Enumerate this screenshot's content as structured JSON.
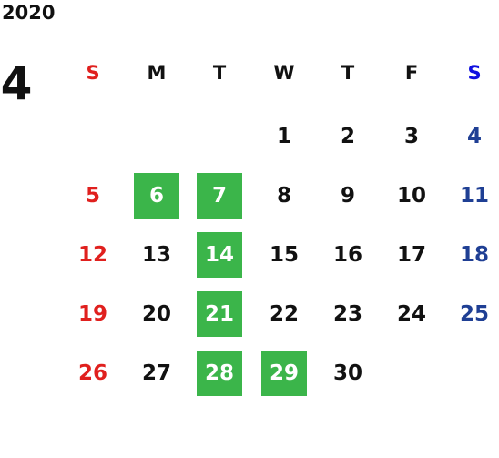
{
  "year": "2020",
  "month": "4",
  "weekdays": [
    "S",
    "M",
    "T",
    "W",
    "T",
    "F",
    "S"
  ],
  "weeks": [
    [
      null,
      null,
      null,
      {
        "day": 1
      },
      {
        "day": 2
      },
      {
        "day": 3
      },
      {
        "day": 4
      }
    ],
    [
      {
        "day": 5
      },
      {
        "day": 6,
        "highlight": true
      },
      {
        "day": 7,
        "highlight": true
      },
      {
        "day": 8
      },
      {
        "day": 9
      },
      {
        "day": 10
      },
      {
        "day": 11
      }
    ],
    [
      {
        "day": 12
      },
      {
        "day": 13
      },
      {
        "day": 14,
        "highlight": true
      },
      {
        "day": 15
      },
      {
        "day": 16
      },
      {
        "day": 17
      },
      {
        "day": 18
      }
    ],
    [
      {
        "day": 19
      },
      {
        "day": 20
      },
      {
        "day": 21,
        "highlight": true
      },
      {
        "day": 22
      },
      {
        "day": 23
      },
      {
        "day": 24
      },
      {
        "day": 25
      }
    ],
    [
      {
        "day": 26
      },
      {
        "day": 27
      },
      {
        "day": 28,
        "highlight": true
      },
      {
        "day": 29,
        "highlight": true
      },
      {
        "day": 30
      },
      null,
      null
    ]
  ]
}
